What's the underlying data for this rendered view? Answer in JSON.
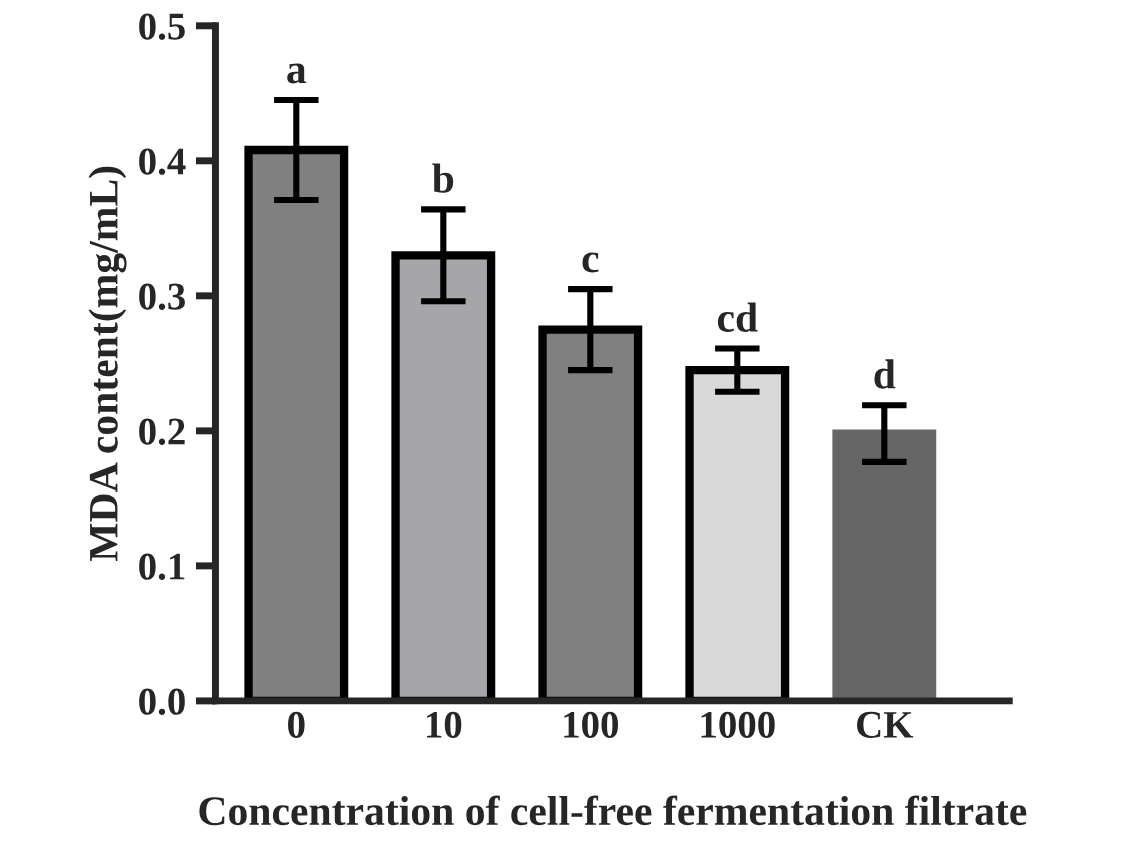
{
  "chart_data": {
    "type": "bar",
    "xlabel": "Concentration of cell-free fermentation filtrate",
    "ylabel": "MDA content(mg/mL)",
    "categories": [
      "0",
      "10",
      "100",
      "1000",
      "CK"
    ],
    "values": [
      0.408,
      0.33,
      0.275,
      0.245,
      0.198
    ],
    "errors": [
      0.037,
      0.034,
      0.03,
      0.016,
      0.021
    ],
    "colors": [
      "#808080",
      "#a6a6a8",
      "#808080",
      "#d9d9d9",
      "#666666"
    ],
    "ylim": [
      0,
      0.5
    ],
    "yticks": [
      {
        "value": 0,
        "label": "0.0"
      },
      0.1,
      0.2,
      0.3,
      0.4,
      0.5
    ],
    "annotations": [
      {
        "text": "a",
        "x": "0",
        "y": 0.445
      },
      {
        "text": "b",
        "x": "10",
        "y": 0.364
      },
      {
        "text": "c",
        "x": "100",
        "y": 0.305
      },
      {
        "text": "cd",
        "x": "1000",
        "y": 0.261
      },
      {
        "text": "d",
        "x": "CK",
        "y": 0.219
      }
    ],
    "grid": false
  }
}
